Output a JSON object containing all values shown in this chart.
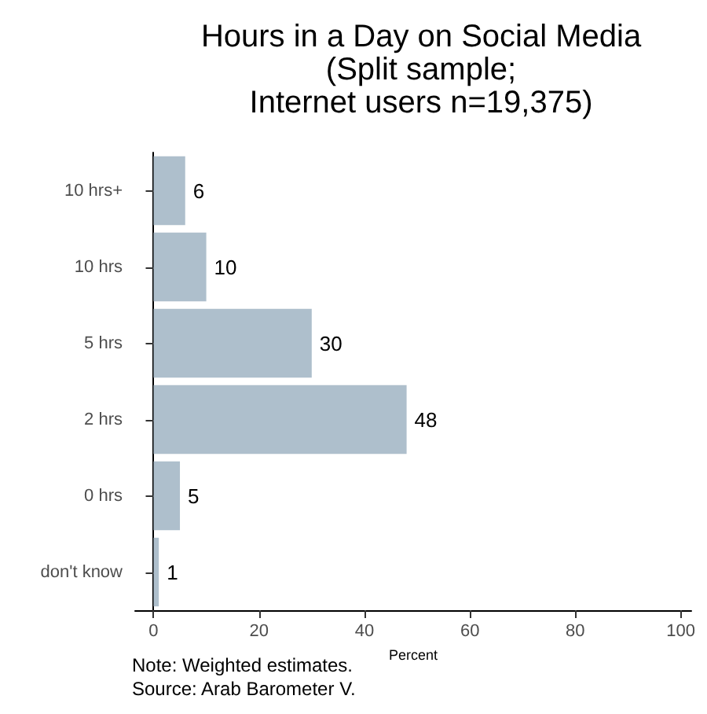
{
  "chart_data": {
    "type": "bar",
    "orientation": "horizontal",
    "title": "Hours in a Day on Social Media\n(Split sample;\nInternet users n=19,375)",
    "categories": [
      "10 hrs+",
      "10 hrs",
      "5 hrs",
      "2 hrs",
      "0 hrs",
      "don't know"
    ],
    "values": [
      6,
      10,
      30,
      48,
      5,
      1
    ],
    "color": "#aebfcc",
    "xlabel": "Percent",
    "xlim": [
      -3.5,
      102
    ],
    "xticks": [
      0,
      20,
      40,
      60,
      80,
      100
    ],
    "data_labels": true,
    "grid": false,
    "annotations": [
      "Note: Weighted estimates.",
      "Source: Arab Barometer V."
    ]
  }
}
